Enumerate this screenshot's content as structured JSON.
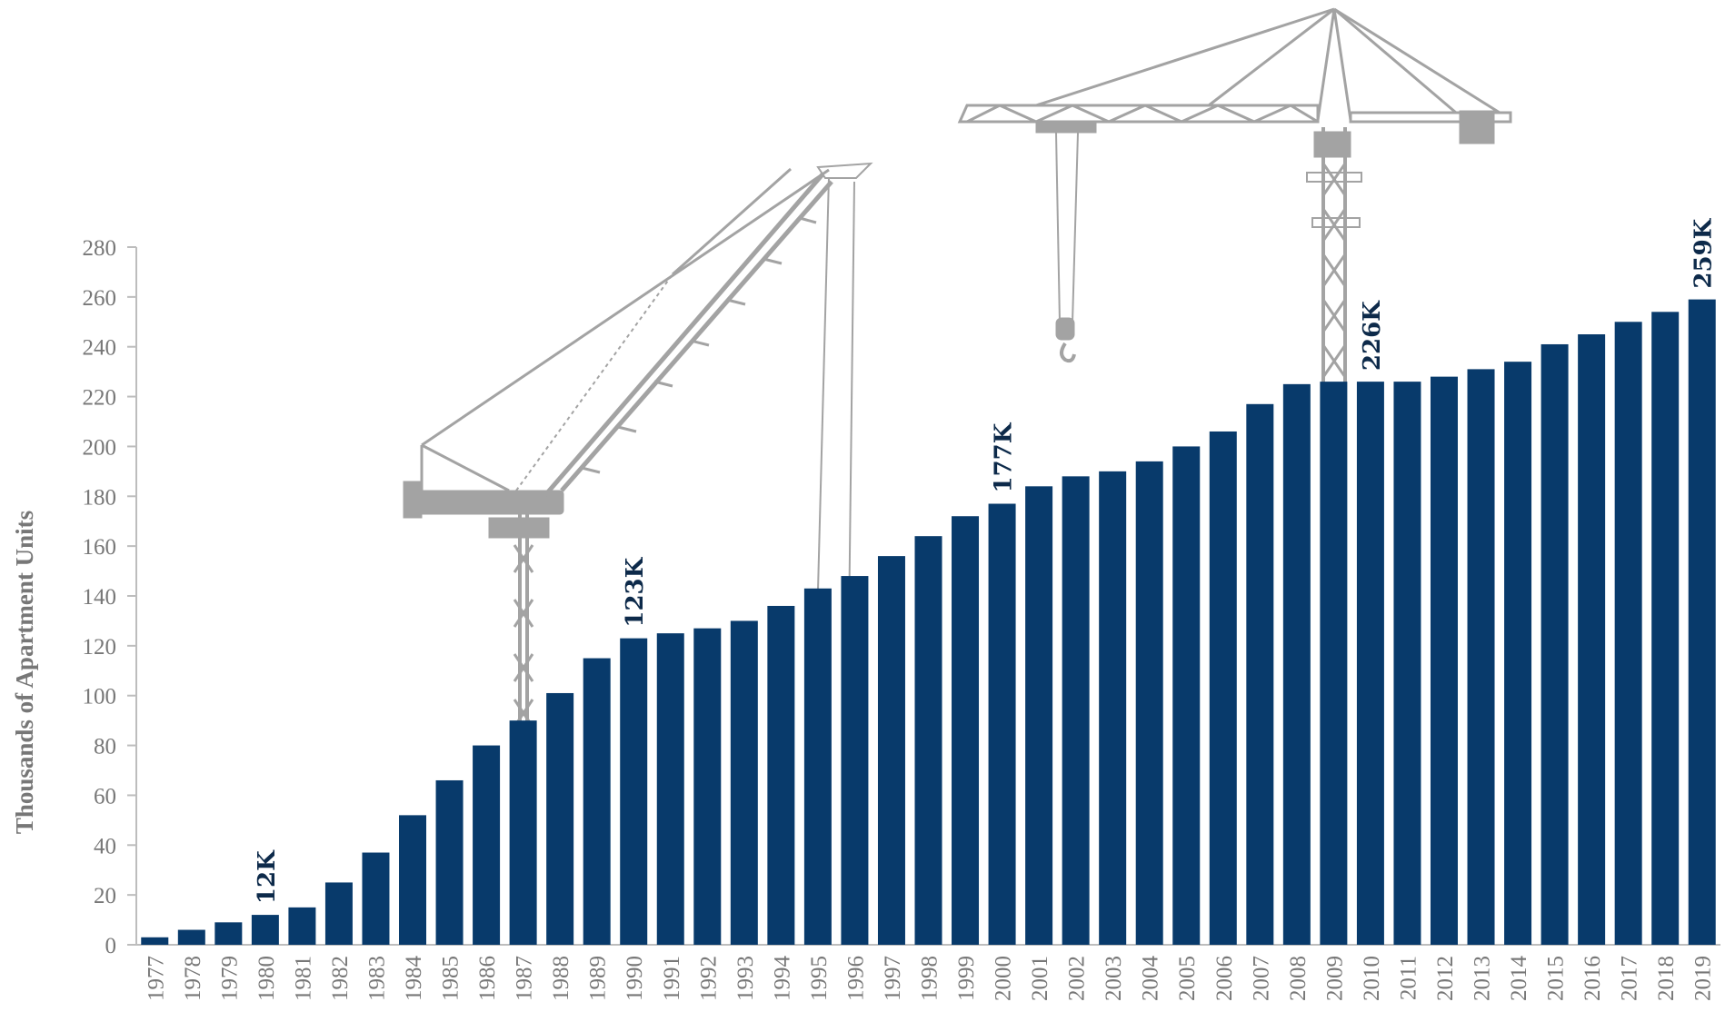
{
  "chart_data": {
    "type": "bar",
    "ylabel": "Thousands of Apartment Units",
    "xlabel": "",
    "ylim": [
      0,
      280
    ],
    "yticks": [
      0,
      20,
      40,
      60,
      80,
      100,
      120,
      140,
      160,
      180,
      200,
      220,
      240,
      260,
      280
    ],
    "grid": false,
    "bar_color": "#083a6b",
    "illustration_color": "#a3a3a3",
    "categories": [
      "1977",
      "1978",
      "1979",
      "1980",
      "1981",
      "1982",
      "1983",
      "1984",
      "1985",
      "1986",
      "1987",
      "1988",
      "1989",
      "1990",
      "1991",
      "1992",
      "1993",
      "1994",
      "1995",
      "1996",
      "1997",
      "1998",
      "1999",
      "2000",
      "2001",
      "2002",
      "2003",
      "2004",
      "2005",
      "2006",
      "2007",
      "2008",
      "2009",
      "2010",
      "2011",
      "2012",
      "2013",
      "2014",
      "2015",
      "2016",
      "2017",
      "2018",
      "2019"
    ],
    "values": [
      3,
      6,
      9,
      12,
      15,
      25,
      37,
      52,
      66,
      80,
      90,
      101,
      115,
      123,
      125,
      127,
      130,
      136,
      143,
      148,
      156,
      164,
      172,
      177,
      184,
      188,
      190,
      194,
      200,
      206,
      217,
      225,
      226,
      226,
      226,
      228,
      231,
      234,
      241,
      245,
      250,
      254,
      259
    ],
    "annotations": [
      {
        "category": "1980",
        "text": "12K"
      },
      {
        "category": "1990",
        "text": "123K"
      },
      {
        "category": "2000",
        "text": "177K"
      },
      {
        "category": "2010",
        "text": "226K"
      },
      {
        "category": "2019",
        "text": "259K"
      }
    ]
  }
}
